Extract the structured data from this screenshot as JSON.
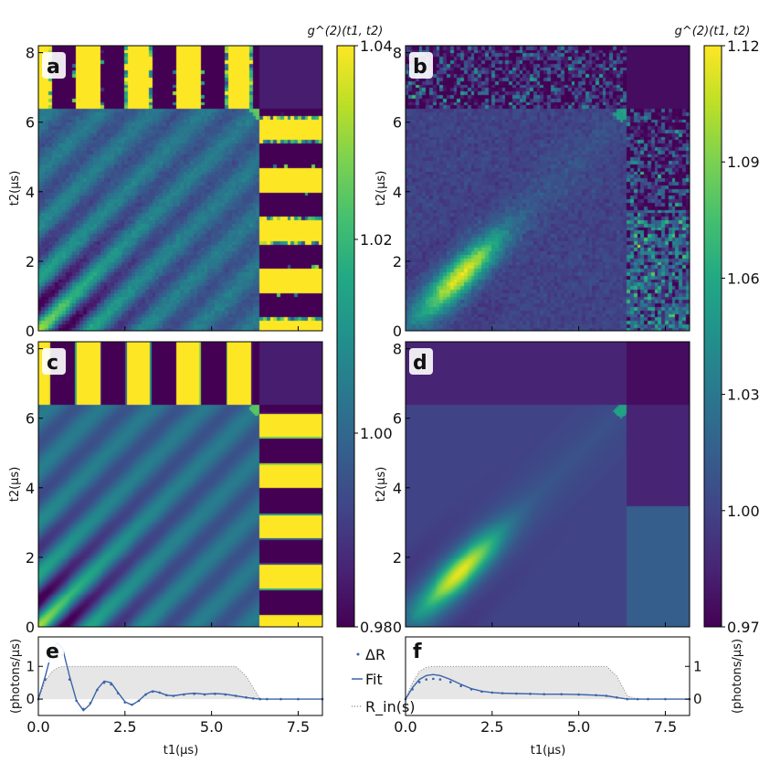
{
  "panels": [
    {
      "label": "a",
      "kind": "measured",
      "pulse": "oscillating"
    },
    {
      "label": "b",
      "kind": "measured",
      "pulse": "smooth"
    },
    {
      "label": "c",
      "kind": "theory",
      "pulse": "oscillating"
    },
    {
      "label": "d",
      "kind": "theory",
      "pulse": "smooth"
    },
    {
      "label": "e"
    },
    {
      "label": "f"
    }
  ],
  "colorbars": [
    {
      "label": "g^(2)(t1, t2)",
      "min": 0.98,
      "max": 1.04,
      "ticks": [
        "0.98",
        "1.00",
        "1.02",
        "1.04"
      ],
      "tick_values": [
        0.98,
        1.0,
        1.02,
        1.04
      ]
    },
    {
      "label": "g^(2)(t1, t2)",
      "min": 0.97,
      "max": 1.12,
      "ticks": [
        "0.97",
        "1.00",
        "1.03",
        "1.06",
        "1.09",
        "1.12"
      ],
      "tick_values": [
        0.97,
        1.0,
        1.03,
        1.06,
        1.09,
        1.12
      ]
    }
  ],
  "axes": {
    "x_label": "t1(μs)",
    "y_label": "t2(μs)",
    "x_ticks": [
      "0.0",
      "2.5",
      "5.0",
      "7.5"
    ],
    "x_tick_values": [
      0,
      2.5,
      5,
      7.5
    ],
    "y_ticks": [
      "0",
      "2",
      "4",
      "6",
      "8"
    ],
    "y_tick_values": [
      0,
      2,
      4,
      6,
      8
    ],
    "lower_y_label": "(photons/μs)",
    "lower_y_ticks": [
      "0",
      "1"
    ],
    "lower_y_tick_values": [
      0,
      1
    ]
  },
  "legend": {
    "items": [
      {
        "label": "ΔR",
        "style": "dots"
      },
      {
        "label": "Fit",
        "style": "line"
      },
      {
        "label": "R_in(s)",
        "style": "dotted"
      }
    ]
  },
  "colors": {
    "line": "#3a63a8",
    "envelope_fill": "#e6e6e6",
    "envelope_line": "#666666"
  },
  "chart_data": [
    {
      "type": "heatmap",
      "panel": "a",
      "xlim": [
        0,
        8.2
      ],
      "ylim": [
        0,
        8.2
      ],
      "zlim": [
        0.98,
        1.04
      ],
      "colormap": "viridis",
      "gate_end_us": 6.4
    },
    {
      "type": "heatmap",
      "panel": "b",
      "xlim": [
        0,
        8.2
      ],
      "ylim": [
        0,
        8.2
      ],
      "zlim": [
        0.97,
        1.12
      ],
      "colormap": "viridis",
      "gate_end_us": 6.4
    },
    {
      "type": "heatmap",
      "panel": "c",
      "xlim": [
        0,
        8.2
      ],
      "ylim": [
        0,
        8.2
      ],
      "zlim": [
        0.98,
        1.04
      ],
      "colormap": "viridis",
      "gate_end_us": 6.4
    },
    {
      "type": "heatmap",
      "panel": "d",
      "xlim": [
        0,
        8.2
      ],
      "ylim": [
        0,
        8.2
      ],
      "zlim": [
        0.97,
        1.12
      ],
      "colormap": "viridis",
      "gate_end_us": 6.4
    },
    {
      "type": "line",
      "panel": "e",
      "xlim": [
        0,
        8.2
      ],
      "ylim": [
        -0.5,
        1.9
      ],
      "x": [
        0,
        0.2,
        0.4,
        0.55,
        0.7,
        0.9,
        1.1,
        1.3,
        1.5,
        1.7,
        1.9,
        2.1,
        2.3,
        2.5,
        2.7,
        2.9,
        3.1,
        3.3,
        3.5,
        3.7,
        3.9,
        4.2,
        4.5,
        4.8,
        5.1,
        5.4,
        5.7,
        6.0,
        6.2,
        6.4,
        6.6,
        7.0,
        7.5,
        8.2
      ],
      "series": [
        {
          "name": "Fit",
          "values": [
            0,
            0.7,
            1.5,
            1.72,
            1.55,
            0.7,
            -0.05,
            -0.35,
            -0.15,
            0.3,
            0.55,
            0.5,
            0.2,
            -0.08,
            -0.18,
            -0.05,
            0.15,
            0.25,
            0.2,
            0.12,
            0.1,
            0.15,
            0.18,
            0.15,
            0.17,
            0.15,
            0.1,
            0.05,
            0.02,
            0,
            0,
            0,
            0,
            0
          ]
        },
        {
          "name": "ΔR",
          "values": [
            0,
            0.6,
            1.3,
            1.5,
            1.35,
            0.6,
            -0.05,
            -0.3,
            -0.12,
            0.28,
            0.5,
            0.45,
            0.18,
            -0.1,
            -0.17,
            -0.05,
            0.14,
            0.23,
            0.2,
            0.12,
            0.1,
            0.14,
            0.16,
            0.14,
            0.16,
            0.14,
            0.1,
            0.05,
            0.02,
            0,
            0,
            0,
            0,
            0
          ]
        },
        {
          "name": "R_in(s)",
          "values": [
            0,
            0.55,
            0.85,
            0.95,
            1,
            1,
            1,
            1,
            1,
            1,
            1,
            1,
            1,
            1,
            1,
            1,
            1,
            1,
            1,
            1,
            1,
            1,
            1,
            1,
            1,
            1,
            1,
            0.7,
            0.35,
            0,
            0,
            0,
            0,
            0
          ]
        }
      ]
    },
    {
      "type": "line",
      "panel": "f",
      "xlim": [
        0,
        8.2
      ],
      "ylim": [
        -0.5,
        1.9
      ],
      "x": [
        0,
        0.2,
        0.4,
        0.6,
        0.8,
        1.0,
        1.3,
        1.6,
        1.9,
        2.2,
        2.5,
        2.8,
        3.2,
        3.6,
        4.0,
        4.5,
        5.0,
        5.5,
        5.8,
        6.1,
        6.4,
        6.7,
        7.0,
        7.5,
        8.2
      ],
      "series": [
        {
          "name": "Fit",
          "values": [
            0,
            0.35,
            0.6,
            0.72,
            0.75,
            0.72,
            0.6,
            0.45,
            0.32,
            0.24,
            0.2,
            0.18,
            0.17,
            0.16,
            0.15,
            0.15,
            0.14,
            0.12,
            0.1,
            0.05,
            0,
            0,
            0,
            0,
            0
          ]
        },
        {
          "name": "ΔR",
          "values": [
            0,
            0.3,
            0.52,
            0.6,
            0.62,
            0.6,
            0.52,
            0.4,
            0.3,
            0.23,
            0.2,
            0.18,
            0.17,
            0.16,
            0.15,
            0.15,
            0.14,
            0.12,
            0.1,
            0.05,
            0,
            0,
            0,
            0,
            0
          ]
        },
        {
          "name": "R_in(s)",
          "values": [
            0,
            0.5,
            0.85,
            0.97,
            1,
            1,
            1,
            1,
            1,
            1,
            1,
            1,
            1,
            1,
            1,
            1,
            1,
            1,
            1,
            0.7,
            0.1,
            0,
            0,
            0,
            0
          ]
        }
      ]
    }
  ]
}
